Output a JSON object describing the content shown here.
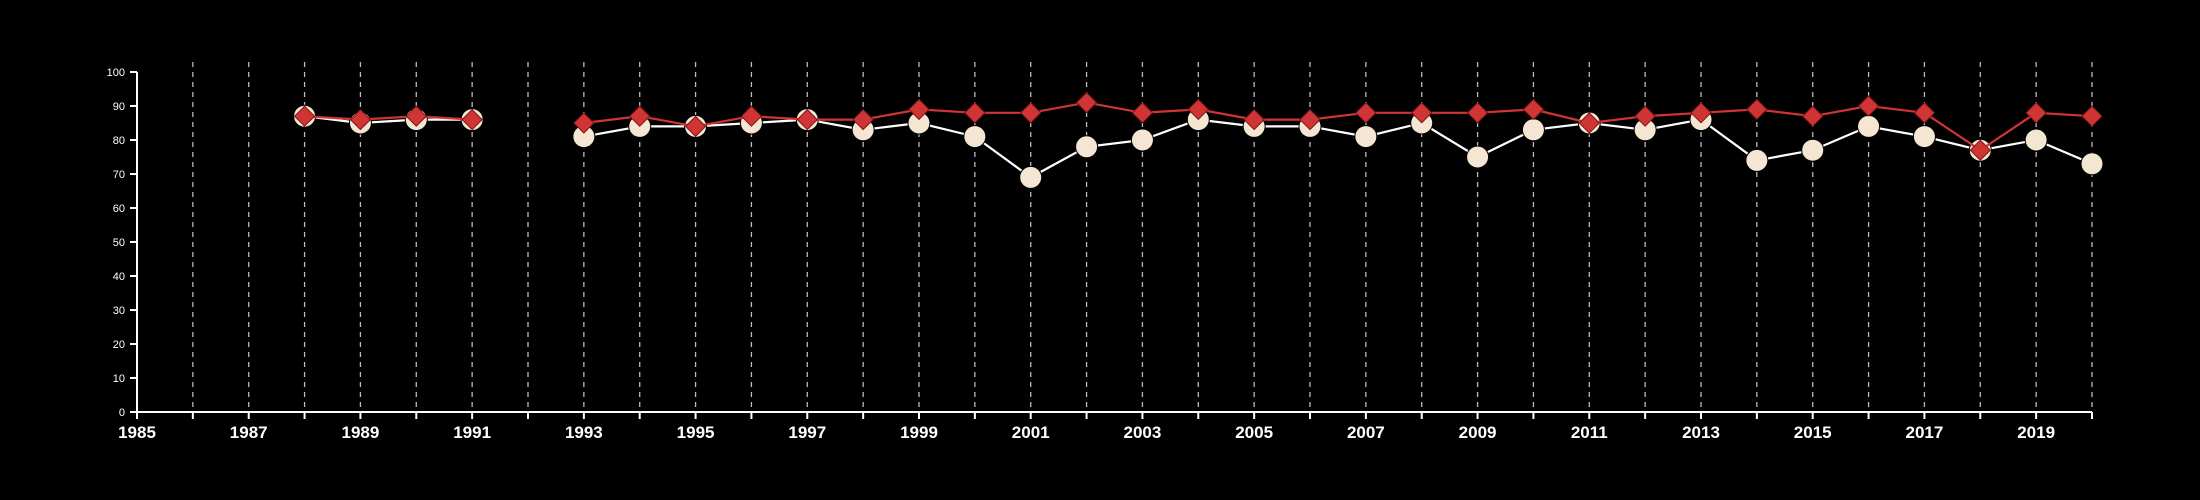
{
  "chart_data": {
    "type": "line",
    "title": "",
    "xlabel": "",
    "ylabel": "",
    "xlim": [
      1985,
      2020
    ],
    "ylim": [
      0,
      100
    ],
    "x_ticks": [
      1985,
      1987,
      1989,
      1991,
      1993,
      1995,
      1997,
      1999,
      2001,
      2003,
      2005,
      2007,
      2009,
      2011,
      2013,
      2015,
      2017,
      2019
    ],
    "y_ticks": [
      0,
      10,
      20,
      30,
      40,
      50,
      60,
      70,
      80,
      90,
      100
    ],
    "grid": "vertical dashed lines at each year",
    "background_color": "#000000",
    "series": [
      {
        "marker": "circle",
        "color": "#f5e6d3",
        "line_color": "#ffffff",
        "points": [
          [
            1988,
            87
          ],
          [
            1989,
            85
          ],
          [
            1990,
            86
          ],
          [
            1991,
            86
          ],
          [
            1993,
            81
          ],
          [
            1994,
            84
          ],
          [
            1995,
            84
          ],
          [
            1996,
            85
          ],
          [
            1997,
            86
          ],
          [
            1998,
            83
          ],
          [
            1999,
            85
          ],
          [
            2000,
            81
          ],
          [
            2001,
            69
          ],
          [
            2002,
            78
          ],
          [
            2003,
            80
          ],
          [
            2004,
            86
          ],
          [
            2005,
            84
          ],
          [
            2006,
            84
          ],
          [
            2007,
            81
          ],
          [
            2008,
            85
          ],
          [
            2009,
            75
          ],
          [
            2010,
            83
          ],
          [
            2011,
            85
          ],
          [
            2012,
            83
          ],
          [
            2013,
            86
          ],
          [
            2014,
            74
          ],
          [
            2015,
            77
          ],
          [
            2016,
            84
          ],
          [
            2017,
            81
          ],
          [
            2018,
            77
          ],
          [
            2019,
            80
          ],
          [
            2020,
            73
          ]
        ]
      },
      {
        "marker": "diamond",
        "color": "#d03535",
        "line_color": "#d03535",
        "points": [
          [
            1988,
            87
          ],
          [
            1989,
            86
          ],
          [
            1990,
            87
          ],
          [
            1991,
            86
          ],
          [
            1993,
            85
          ],
          [
            1994,
            87
          ],
          [
            1995,
            84
          ],
          [
            1996,
            87
          ],
          [
            1997,
            86
          ],
          [
            1998,
            86
          ],
          [
            1999,
            89
          ],
          [
            2000,
            88
          ],
          [
            2001,
            88
          ],
          [
            2002,
            91
          ],
          [
            2003,
            88
          ],
          [
            2004,
            89
          ],
          [
            2005,
            86
          ],
          [
            2006,
            86
          ],
          [
            2007,
            88
          ],
          [
            2008,
            88
          ],
          [
            2009,
            88
          ],
          [
            2010,
            89
          ],
          [
            2011,
            85
          ],
          [
            2012,
            87
          ],
          [
            2013,
            88
          ],
          [
            2014,
            89
          ],
          [
            2015,
            87
          ],
          [
            2016,
            90
          ],
          [
            2017,
            88
          ],
          [
            2018,
            77
          ],
          [
            2019,
            88
          ],
          [
            2020,
            87
          ]
        ]
      }
    ]
  }
}
